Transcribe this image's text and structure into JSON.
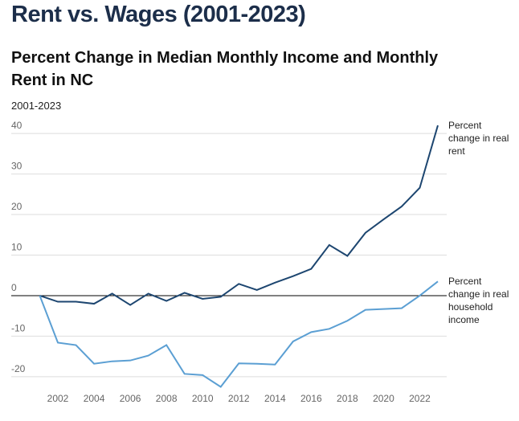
{
  "chart_data": {
    "type": "line",
    "title": "Rent vs. Wages (2001-2023)",
    "subtitle": "Percent Change in Median Monthly Income and Monthly Rent in NC",
    "note": "2001-2023",
    "x": [
      2001,
      2002,
      2003,
      2004,
      2005,
      2006,
      2007,
      2008,
      2009,
      2010,
      2011,
      2012,
      2013,
      2014,
      2015,
      2016,
      2017,
      2018,
      2019,
      2020,
      2021,
      2022,
      2023
    ],
    "series": [
      {
        "name": "Percent change in real rent",
        "color": "#1d4670",
        "values": [
          0,
          -1.5,
          -1.5,
          -2,
          0.5,
          -2.3,
          0.5,
          -1.3,
          0.7,
          -0.8,
          -0.3,
          2.9,
          1.4,
          3.2,
          4.8,
          6.6,
          12.5,
          9.8,
          15.5,
          18.8,
          22,
          26.6,
          42
        ]
      },
      {
        "name": "Percent change in real household income",
        "color": "#5b9fd3",
        "values": [
          0,
          -11.6,
          -12.2,
          -16.8,
          -16.2,
          -16,
          -14.8,
          -12.2,
          -19.3,
          -19.6,
          -22.5,
          -16.7,
          -16.8,
          -17,
          -11.3,
          -9,
          -8.2,
          -6.2,
          -3.5,
          -3.3,
          -3.1,
          0,
          3.5
        ]
      }
    ],
    "xlim": [
      2001,
      2023
    ],
    "xticks": [
      2002,
      2004,
      2006,
      2008,
      2010,
      2012,
      2014,
      2016,
      2018,
      2020,
      2022
    ],
    "ylim": [
      -23,
      43
    ],
    "yticks": [
      -20,
      -10,
      0,
      10,
      20,
      30,
      40
    ],
    "grid": true
  }
}
